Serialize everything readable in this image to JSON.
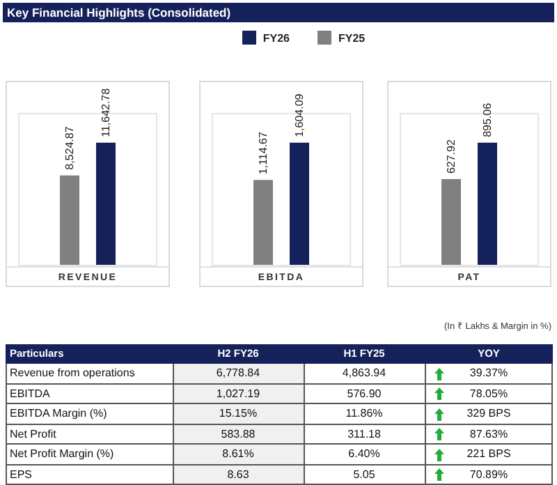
{
  "chart_data": [
    {
      "type": "bar",
      "title": "Key Financial Highlights (Consolidated)",
      "xlabel": "REVENUE",
      "categories": [
        null
      ],
      "legend": "top",
      "series": [
        {
          "name": "FY25",
          "color": "#808080",
          "values": [
            8524.87
          ],
          "value_labels": [
            "8,524.87"
          ]
        },
        {
          "name": "FY26",
          "color": "#14215a",
          "values": [
            11642.78
          ],
          "value_labels": [
            "11,642.78"
          ]
        }
      ]
    },
    {
      "type": "bar",
      "xlabel": "EBITDA",
      "categories": [
        null
      ],
      "series": [
        {
          "color": "#808080",
          "values": [
            1114.67
          ],
          "value_labels": [
            "1,114.67"
          ]
        },
        {
          "color": "#14215a",
          "values": [
            1604.09
          ],
          "value_labels": [
            "1,604.09"
          ]
        }
      ]
    },
    {
      "type": "bar",
      "xlabel": "PAT",
      "categories": [
        null
      ],
      "series": [
        {
          "color": "#808080",
          "values": [
            627.92
          ],
          "value_labels": [
            "627.92"
          ]
        },
        {
          "color": "#14215a",
          "values": [
            895.06
          ],
          "value_labels": [
            "895.06"
          ]
        }
      ]
    },
    {
      "type": "other",
      "annotations": [
        "(In ₹ Lakhs & Margin in %)"
      ],
      "categories": [
        "Particulars",
        "H2 FY26",
        "H1 FY25",
        "YOY"
      ],
      "y_categories": [
        "Revenue from operations",
        "EBITDA",
        "EBITDA Margin (%)",
        "Net Profit",
        "Net Profit Margin (%)",
        "EPS"
      ],
      "cell_labels": [
        [
          "6,778.84",
          "4,863.94",
          "39.37%"
        ],
        [
          "1,027.19",
          "576.90",
          "78.05%"
        ],
        [
          "15.15%",
          "11.86%",
          "329 BPS"
        ],
        [
          "583.88",
          "311.18",
          "87.63%"
        ],
        [
          "8.61%",
          "6.40%",
          "221 BPS"
        ],
        [
          "8.63",
          "5.05",
          "70.89%"
        ]
      ]
    }
  ]
}
